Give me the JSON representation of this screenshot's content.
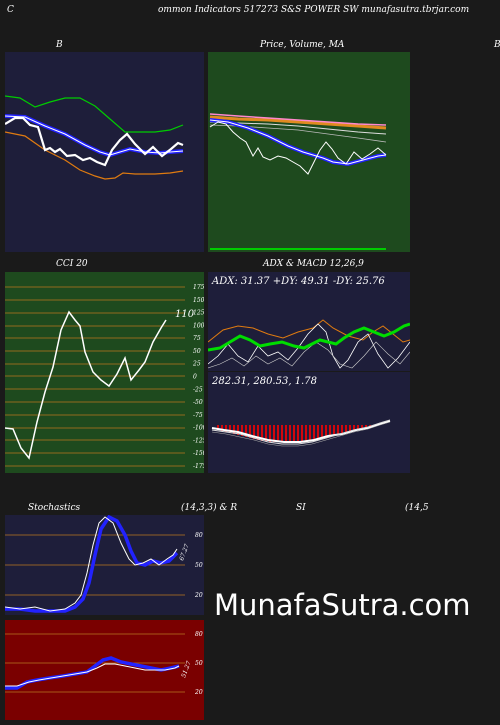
{
  "header": {
    "left_char": "C",
    "title": "ommon  Indicators 517273 S&S POWER SW munafasutra.tbrjar.com",
    "right_char": "B"
  },
  "panel_b": {
    "title": "B"
  },
  "panel_price": {
    "title_a": "Price,",
    "title_b": "Volume,",
    "title_c": "MA"
  },
  "panel_cci": {
    "title": "CCI 20",
    "current_value": "110",
    "ticks": [
      "175",
      "150",
      "125",
      "100",
      "75",
      "50",
      "25",
      "0",
      "-25",
      "-50",
      "-75",
      "-100",
      "-125",
      "-150",
      "-175"
    ]
  },
  "panel_adx": {
    "title": "ADX  & MACD 12,26,9",
    "readout": "ADX: 31.37  +DY: 49.31  -DY: 25.76"
  },
  "panel_macd": {
    "readout": "282.31,  280.53,  1.78"
  },
  "panel_stoch": {
    "title_left": "Stochastics",
    "title_right": "(14,3,3) & R",
    "ticks": [
      "80",
      "50",
      "20"
    ],
    "value_label": "67.27"
  },
  "panel_rsi": {
    "title_left": "SI",
    "title_right": "(14,5",
    "ticks": [
      "80",
      "50",
      "20"
    ],
    "value_label": "51.27"
  },
  "watermark": "MunafaSutra.com",
  "colors": {
    "navy_bg": "#1e1e3a",
    "green_bg": "#1e4a1e",
    "dark_red_bg": "#7a0000",
    "grid_orange": "#b8771f",
    "line_blue": "#2222ff",
    "line_green": "#00cc00",
    "line_orange": "#e07b10"
  }
}
